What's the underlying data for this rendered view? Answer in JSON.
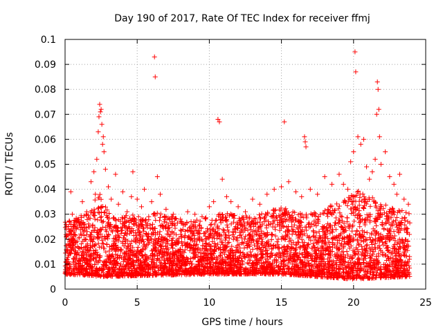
{
  "chart_data": {
    "type": "scatter",
    "title": "Day 190 of 2017, Rate Of TEC Index for receiver ffmj",
    "xlabel": "GPS time / hours",
    "ylabel": "ROTI / TECUs",
    "xlim": [
      0,
      25
    ],
    "ylim": [
      0,
      0.1
    ],
    "xticks": [
      0,
      5,
      10,
      15,
      20,
      25
    ],
    "xtick_labels": [
      "0",
      "5",
      "10",
      "15",
      "20",
      "25"
    ],
    "yticks": [
      0,
      0.01,
      0.02,
      0.03,
      0.04,
      0.05,
      0.06,
      0.07,
      0.08,
      0.09,
      0.1
    ],
    "ytick_labels": [
      "0",
      "0.01",
      "0.02",
      "0.03",
      "0.04",
      "0.05",
      "0.06",
      "0.07",
      "0.08",
      "0.09",
      "0.1"
    ],
    "grid": true,
    "marker": "+",
    "color": "#ff0000",
    "series": [
      {
        "name": "ROTI",
        "points": [
          [
            0.1,
            0.024
          ],
          [
            0.2,
            0.018
          ],
          [
            0.4,
            0.039
          ],
          [
            0.5,
            0.03
          ],
          [
            0.6,
            0.022
          ],
          [
            0.9,
            0.028
          ],
          [
            1.2,
            0.035
          ],
          [
            1.5,
            0.031
          ],
          [
            1.8,
            0.043
          ],
          [
            2.0,
            0.047
          ],
          [
            2.1,
            0.038
          ],
          [
            2.2,
            0.052
          ],
          [
            2.3,
            0.063
          ],
          [
            2.35,
            0.069
          ],
          [
            2.4,
            0.074
          ],
          [
            2.45,
            0.071
          ],
          [
            2.5,
            0.072
          ],
          [
            2.55,
            0.066
          ],
          [
            2.6,
            0.058
          ],
          [
            2.65,
            0.061
          ],
          [
            2.7,
            0.055
          ],
          [
            2.8,
            0.048
          ],
          [
            3.0,
            0.041
          ],
          [
            3.2,
            0.036
          ],
          [
            3.5,
            0.046
          ],
          [
            3.7,
            0.034
          ],
          [
            4.0,
            0.039
          ],
          [
            4.3,
            0.031
          ],
          [
            4.6,
            0.037
          ],
          [
            4.7,
            0.047
          ],
          [
            5.0,
            0.036
          ],
          [
            5.3,
            0.033
          ],
          [
            5.5,
            0.04
          ],
          [
            5.8,
            0.029
          ],
          [
            6.0,
            0.035
          ],
          [
            6.2,
            0.093
          ],
          [
            6.25,
            0.085
          ],
          [
            6.4,
            0.045
          ],
          [
            6.6,
            0.038
          ],
          [
            7.0,
            0.032
          ],
          [
            7.5,
            0.03
          ],
          [
            8.0,
            0.028
          ],
          [
            8.5,
            0.031
          ],
          [
            9.0,
            0.03
          ],
          [
            9.5,
            0.029
          ],
          [
            10.0,
            0.033
          ],
          [
            10.3,
            0.035
          ],
          [
            10.6,
            0.068
          ],
          [
            10.7,
            0.067
          ],
          [
            10.9,
            0.044
          ],
          [
            11.2,
            0.037
          ],
          [
            11.5,
            0.035
          ],
          [
            12.0,
            0.033
          ],
          [
            12.5,
            0.031
          ],
          [
            13.0,
            0.036
          ],
          [
            13.5,
            0.034
          ],
          [
            14.0,
            0.038
          ],
          [
            14.5,
            0.04
          ],
          [
            15.0,
            0.041
          ],
          [
            15.2,
            0.067
          ],
          [
            15.5,
            0.043
          ],
          [
            16.0,
            0.039
          ],
          [
            16.4,
            0.037
          ],
          [
            16.6,
            0.061
          ],
          [
            16.65,
            0.059
          ],
          [
            16.7,
            0.057
          ],
          [
            17.0,
            0.04
          ],
          [
            17.5,
            0.038
          ],
          [
            18.0,
            0.045
          ],
          [
            18.5,
            0.042
          ],
          [
            19.0,
            0.046
          ],
          [
            19.3,
            0.042
          ],
          [
            19.6,
            0.04
          ],
          [
            19.8,
            0.051
          ],
          [
            20.0,
            0.055
          ],
          [
            20.1,
            0.095
          ],
          [
            20.15,
            0.087
          ],
          [
            20.3,
            0.061
          ],
          [
            20.5,
            0.058
          ],
          [
            20.7,
            0.06
          ],
          [
            20.9,
            0.049
          ],
          [
            21.1,
            0.044
          ],
          [
            21.3,
            0.047
          ],
          [
            21.5,
            0.052
          ],
          [
            21.6,
            0.07
          ],
          [
            21.65,
            0.083
          ],
          [
            21.7,
            0.08
          ],
          [
            21.75,
            0.072
          ],
          [
            21.8,
            0.061
          ],
          [
            21.9,
            0.05
          ],
          [
            22.2,
            0.055
          ],
          [
            22.5,
            0.045
          ],
          [
            22.8,
            0.042
          ],
          [
            23.0,
            0.038
          ],
          [
            23.2,
            0.046
          ],
          [
            23.5,
            0.036
          ],
          [
            23.8,
            0.034
          ]
        ],
        "dense_band": {
          "x_range": [
            0,
            23.9
          ],
          "baseline_min": [
            [
              0,
              0.006
            ],
            [
              2.5,
              0.005
            ],
            [
              10,
              0.006
            ],
            [
              15,
              0.006
            ],
            [
              20,
              0.004
            ],
            [
              23.9,
              0.005
            ]
          ],
          "upper_envelope": [
            [
              0,
              0.027
            ],
            [
              1,
              0.029
            ],
            [
              1.8,
              0.032
            ],
            [
              2.3,
              0.04
            ],
            [
              2.8,
              0.033
            ],
            [
              3.5,
              0.028
            ],
            [
              4.5,
              0.03
            ],
            [
              5.5,
              0.029
            ],
            [
              6.5,
              0.031
            ],
            [
              8.5,
              0.027
            ],
            [
              10,
              0.029
            ],
            [
              11,
              0.031
            ],
            [
              13,
              0.029
            ],
            [
              15,
              0.033
            ],
            [
              16.5,
              0.03
            ],
            [
              17.5,
              0.031
            ],
            [
              19,
              0.035
            ],
            [
              20,
              0.038
            ],
            [
              20.5,
              0.04
            ],
            [
              21.5,
              0.036
            ],
            [
              22.5,
              0.033
            ],
            [
              23.9,
              0.031
            ]
          ]
        }
      }
    ]
  }
}
